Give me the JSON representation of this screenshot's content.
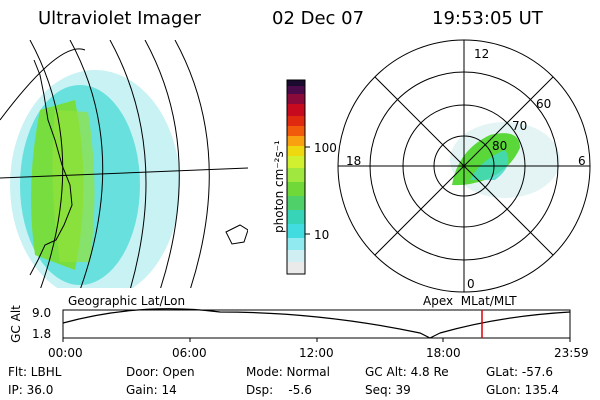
{
  "header": {
    "title": "Ultraviolet Imager",
    "date": "02 Dec 07",
    "time": "19:53:05 UT"
  },
  "colorbar": {
    "label": "photon cm⁻²s⁻¹",
    "ticks": [
      "100",
      "10"
    ]
  },
  "polar": {
    "mlt_labels": [
      "12",
      "18",
      "6",
      "0"
    ],
    "lat_labels": [
      "60",
      "70",
      "80"
    ]
  },
  "map_labels": {
    "left": "Geographic Lat/Lon",
    "right": "Apex  MLat/MLT"
  },
  "orbit": {
    "ylabel": "GC Alt",
    "y_ticks": [
      "9.0",
      "1.8"
    ],
    "x_ticks": [
      "00:00",
      "06:00",
      "12:00",
      "18:00",
      "23:59"
    ]
  },
  "info": {
    "row1": [
      "Flt: LBHL",
      "Door: Open",
      "Mode: Normal",
      "GC Alt: 4.8 Re",
      "GLat: -57.6"
    ],
    "row2": [
      "IP: 36.0",
      "Gain: 14",
      "Dsp:    -5.6",
      "Seq: 39",
      "GLon: 135.4"
    ]
  }
}
